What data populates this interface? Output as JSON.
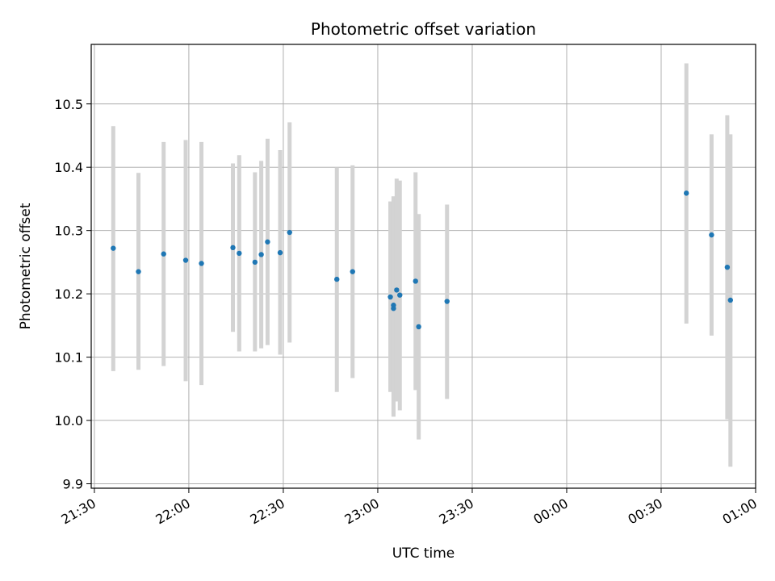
{
  "chart_data": {
    "type": "scatter",
    "title": "Photometric offset variation",
    "xlabel": "UTC time",
    "ylabel": "Photometric offset",
    "x_axis_kind": "time",
    "xlim": [
      "21:29",
      "01:00"
    ],
    "ylim": [
      9.893,
      10.594
    ],
    "xticks": [
      "21:30",
      "22:00",
      "22:30",
      "23:00",
      "23:30",
      "00:00",
      "00:30",
      "01:00"
    ],
    "yticks": [
      "9.9",
      "10.0",
      "10.1",
      "10.2",
      "10.3",
      "10.4",
      "10.5"
    ],
    "grid": true,
    "colors": {
      "point": "#1f77b4",
      "errorbar": "#d3d3d3",
      "grid": "#b0b0b0"
    },
    "points": [
      {
        "x": "21:36",
        "y": 10.272,
        "ylow": 10.078,
        "yhigh": 10.465
      },
      {
        "x": "21:44",
        "y": 10.235,
        "ylow": 10.08,
        "yhigh": 10.391
      },
      {
        "x": "21:52",
        "y": 10.263,
        "ylow": 10.086,
        "yhigh": 10.44
      },
      {
        "x": "21:59",
        "y": 10.253,
        "ylow": 10.062,
        "yhigh": 10.443
      },
      {
        "x": "22:04",
        "y": 10.248,
        "ylow": 10.056,
        "yhigh": 10.44
      },
      {
        "x": "22:14",
        "y": 10.273,
        "ylow": 10.14,
        "yhigh": 10.406
      },
      {
        "x": "22:16",
        "y": 10.264,
        "ylow": 10.109,
        "yhigh": 10.419
      },
      {
        "x": "22:21",
        "y": 10.25,
        "ylow": 10.109,
        "yhigh": 10.392
      },
      {
        "x": "22:23",
        "y": 10.262,
        "ylow": 10.114,
        "yhigh": 10.41
      },
      {
        "x": "22:25",
        "y": 10.282,
        "ylow": 10.119,
        "yhigh": 10.445
      },
      {
        "x": "22:29",
        "y": 10.265,
        "ylow": 10.104,
        "yhigh": 10.427
      },
      {
        "x": "22:32",
        "y": 10.297,
        "ylow": 10.123,
        "yhigh": 10.471
      },
      {
        "x": "22:47",
        "y": 10.223,
        "ylow": 10.045,
        "yhigh": 10.4
      },
      {
        "x": "22:52",
        "y": 10.235,
        "ylow": 10.067,
        "yhigh": 10.403
      },
      {
        "x": "23:04",
        "y": 10.195,
        "ylow": 10.045,
        "yhigh": 10.346
      },
      {
        "x": "23:05",
        "y": 10.182,
        "ylow": 10.01,
        "yhigh": 10.354
      },
      {
        "x": "23:05",
        "y": 10.177,
        "ylow": 10.006,
        "yhigh": 10.348
      },
      {
        "x": "23:06",
        "y": 10.206,
        "ylow": 10.03,
        "yhigh": 10.382
      },
      {
        "x": "23:07",
        "y": 10.198,
        "ylow": 10.016,
        "yhigh": 10.379
      },
      {
        "x": "23:12",
        "y": 10.22,
        "ylow": 10.048,
        "yhigh": 10.392
      },
      {
        "x": "23:13",
        "y": 10.148,
        "ylow": 9.97,
        "yhigh": 10.326
      },
      {
        "x": "23:22",
        "y": 10.188,
        "ylow": 10.034,
        "yhigh": 10.341
      },
      {
        "x": "00:38",
        "y": 10.359,
        "ylow": 10.153,
        "yhigh": 10.564
      },
      {
        "x": "00:46",
        "y": 10.293,
        "ylow": 10.134,
        "yhigh": 10.452
      },
      {
        "x": "00:51",
        "y": 10.242,
        "ylow": 10.002,
        "yhigh": 10.482
      },
      {
        "x": "00:52",
        "y": 10.19,
        "ylow": 9.927,
        "yhigh": 10.452
      }
    ]
  }
}
